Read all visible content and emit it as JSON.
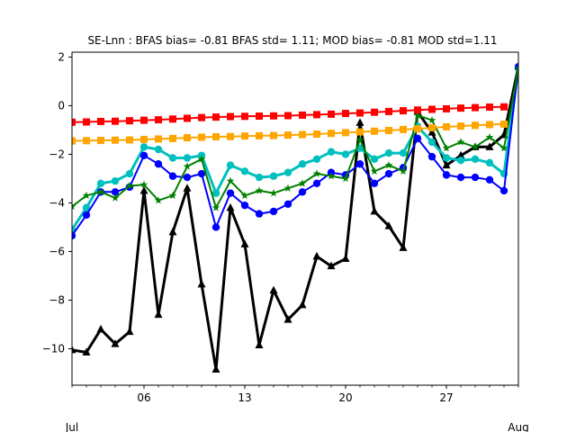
{
  "chart_data": {
    "type": "line",
    "title": "SE-Lnn   : BFAS bias= -0.81 BFAS std= 1.11; MOD bias= -0.81 MOD std=1.11",
    "xlabel": "",
    "ylabel": "",
    "x": [
      1,
      2,
      3,
      4,
      5,
      6,
      7,
      8,
      9,
      10,
      11,
      12,
      13,
      14,
      15,
      16,
      17,
      18,
      19,
      20,
      21,
      22,
      23,
      24,
      25,
      26,
      27,
      28,
      29,
      30,
      31,
      32
    ],
    "xlim": [
      1,
      32
    ],
    "ylim": [
      -11.5,
      2.2
    ],
    "yticks": [
      2,
      0,
      -2,
      -4,
      -6,
      -8,
      -10
    ],
    "ytick_labels": [
      "2",
      "0",
      "−2",
      "−4",
      "−6",
      "−8",
      "−10"
    ],
    "xticks": [
      6,
      13,
      20,
      27
    ],
    "xtick_labels": [
      "06",
      "13",
      "20",
      "27"
    ],
    "xminor_labels": [
      {
        "x": 1,
        "label": "Jul"
      },
      {
        "x": 32,
        "label": "Aug"
      }
    ],
    "grid": false,
    "legend": "none",
    "series": [
      {
        "color": "#000000",
        "marker": "triangle",
        "width": 3,
        "values": [
          -10.05,
          -10.15,
          -9.2,
          -9.8,
          -9.3,
          -3.5,
          -8.6,
          -5.2,
          -3.4,
          -7.35,
          -10.85,
          -4.2,
          -5.7,
          -9.85,
          -7.6,
          -8.8,
          -8.2,
          -6.2,
          -6.6,
          -6.3,
          -0.7,
          -4.35,
          -4.95,
          -5.85,
          -0.25,
          -1.1,
          -2.45,
          -2.05,
          -1.7,
          -1.7,
          -1.2,
          1.6
        ]
      },
      {
        "color": "#00bfbf",
        "marker": "circle",
        "width": 3,
        "values": [
          -5.1,
          -4.2,
          -3.2,
          -3.1,
          -2.8,
          -1.7,
          -1.8,
          -2.15,
          -2.15,
          -2.05,
          -3.6,
          -2.45,
          -2.7,
          -2.95,
          -2.9,
          -2.75,
          -2.4,
          -2.2,
          -1.9,
          -2.0,
          -1.75,
          -2.2,
          -1.95,
          -1.95,
          -0.85,
          -1.5,
          -2.15,
          -2.25,
          -2.2,
          -2.35,
          -2.8,
          1.55
        ]
      },
      {
        "color": "#0000ff",
        "marker": "circle",
        "width": 2,
        "values": [
          -5.35,
          -4.5,
          -3.55,
          -3.55,
          -3.35,
          -2.05,
          -2.4,
          -2.9,
          -2.95,
          -2.8,
          -5.0,
          -3.6,
          -4.1,
          -4.45,
          -4.35,
          -4.05,
          -3.55,
          -3.2,
          -2.75,
          -2.85,
          -2.4,
          -3.2,
          -2.8,
          -2.55,
          -1.35,
          -2.1,
          -2.85,
          -2.95,
          -2.95,
          -3.05,
          -3.5,
          1.6
        ]
      },
      {
        "color": "#008000",
        "marker": "star",
        "width": 2,
        "values": [
          -4.15,
          -3.7,
          -3.55,
          -3.8,
          -3.3,
          -3.25,
          -3.9,
          -3.7,
          -2.5,
          -2.2,
          -4.2,
          -3.1,
          -3.7,
          -3.5,
          -3.6,
          -3.4,
          -3.2,
          -2.8,
          -2.9,
          -3.0,
          -1.4,
          -2.7,
          -2.45,
          -2.7,
          -0.4,
          -0.6,
          -1.75,
          -1.5,
          -1.7,
          -1.3,
          -1.75,
          1.55
        ]
      },
      {
        "color": "#ffa500",
        "marker": "square",
        "width": 2,
        "values": [
          -1.45,
          -1.44,
          -1.43,
          -1.42,
          -1.41,
          -1.39,
          -1.37,
          -1.35,
          -1.32,
          -1.3,
          -1.28,
          -1.27,
          -1.25,
          -1.24,
          -1.23,
          -1.21,
          -1.19,
          -1.17,
          -1.14,
          -1.11,
          -1.08,
          -1.05,
          -1.02,
          -0.98,
          -0.95,
          -0.91,
          -0.87,
          -0.84,
          -0.81,
          -0.78,
          -0.76,
          null
        ]
      },
      {
        "color": "#ff0000",
        "marker": "square",
        "width": 2,
        "values": [
          -0.68,
          -0.67,
          -0.65,
          -0.64,
          -0.62,
          -0.6,
          -0.58,
          -0.55,
          -0.52,
          -0.49,
          -0.47,
          -0.45,
          -0.44,
          -0.43,
          -0.42,
          -0.41,
          -0.39,
          -0.37,
          -0.35,
          -0.32,
          -0.3,
          -0.27,
          -0.24,
          -0.21,
          -0.18,
          -0.15,
          -0.13,
          -0.1,
          -0.08,
          -0.06,
          -0.05,
          null
        ]
      }
    ]
  }
}
